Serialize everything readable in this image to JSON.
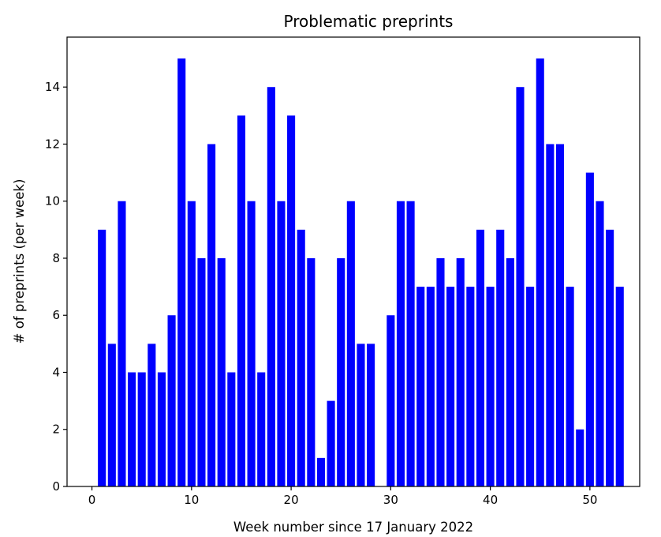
{
  "chart_data": {
    "type": "bar",
    "title": "Problematic preprints",
    "xlabel": "Week number since 17 January 2022",
    "ylabel": "# of preprints (per week)",
    "bar_color": "#0000ff",
    "x": [
      1,
      2,
      3,
      4,
      5,
      6,
      7,
      8,
      9,
      10,
      11,
      12,
      13,
      14,
      15,
      16,
      17,
      18,
      19,
      20,
      21,
      22,
      23,
      24,
      25,
      26,
      27,
      28,
      30,
      31,
      32,
      33,
      34,
      35,
      36,
      37,
      38,
      39,
      40,
      41,
      42,
      43,
      44,
      45,
      46,
      47,
      48,
      49,
      50,
      51,
      52,
      53
    ],
    "values": [
      9,
      5,
      10,
      4,
      4,
      5,
      4,
      6,
      15,
      10,
      8,
      12,
      8,
      4,
      13,
      10,
      4,
      14,
      10,
      13,
      9,
      8,
      1,
      3,
      8,
      10,
      5,
      5,
      6,
      10,
      10,
      7,
      7,
      8,
      7,
      8,
      7,
      9,
      7,
      9,
      8,
      14,
      7,
      15,
      12,
      12,
      7,
      2,
      11,
      10,
      9,
      7
    ],
    "xlim": [
      -2.5,
      55.0
    ],
    "ylim": [
      0,
      15.75
    ],
    "xticks": [
      0,
      10,
      20,
      30,
      40,
      50
    ],
    "yticks": [
      0,
      2,
      4,
      6,
      8,
      10,
      12,
      14
    ],
    "grid": false,
    "legend": "none"
  }
}
